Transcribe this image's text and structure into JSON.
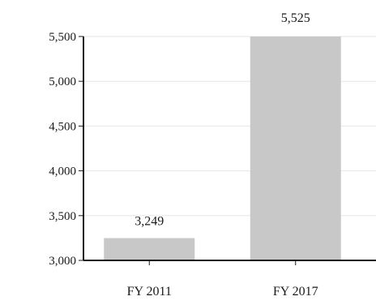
{
  "chart_data": {
    "type": "bar",
    "title": "",
    "xlabel": "",
    "ylabel": "",
    "categories": [
      "FY 2011",
      "FY 2017"
    ],
    "values": [
      3249,
      5525
    ],
    "data_labels": [
      "3,249",
      "5,525"
    ],
    "ylim": [
      3000,
      5500
    ],
    "yticks": [
      3000,
      3500,
      4000,
      4500,
      5000,
      5500
    ],
    "ytick_labels": [
      "3,000",
      "3,500",
      "4,000",
      "4,500",
      "5,000",
      "5,500"
    ],
    "grid": true,
    "legend": "none",
    "colors": {
      "bar": "#c8c8c8",
      "grid": "#e6e6e6",
      "axis": "#1a1a1a"
    }
  }
}
